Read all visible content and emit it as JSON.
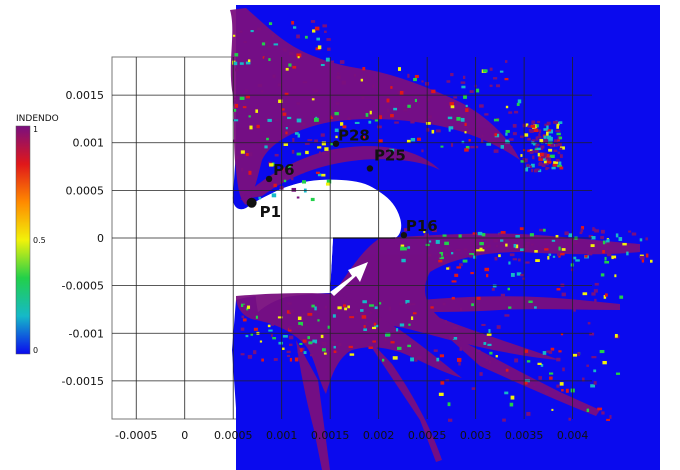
{
  "colorbar": {
    "title": "INDENDO",
    "ticks": [
      "1",
      "0.5",
      "0"
    ],
    "stops": [
      "#7a0f7f",
      "#e0171a",
      "#ff8a00",
      "#f2f20a",
      "#22d04a",
      "#15b9c8",
      "#0a0aee"
    ]
  },
  "axes": {
    "x_ticks": [
      "-0.0005",
      "0",
      "0.0005",
      "0.001",
      "0.0015",
      "0.002",
      "0.0025",
      "0.003",
      "0.0035",
      "0.004"
    ],
    "y_ticks": [
      "0.0015",
      "0.001",
      "0.0005",
      "0",
      "-0.0005",
      "-0.001",
      "-0.0015"
    ],
    "x_values": [
      -0.0005,
      0,
      0.0005,
      0.001,
      0.0015,
      0.002,
      0.0025,
      0.003,
      0.0035,
      0.004
    ],
    "y_values": [
      0.0015,
      0.001,
      0.0005,
      0,
      -0.0005,
      -0.001,
      -0.0015
    ],
    "xlim": [
      -0.00075,
      0.0042
    ],
    "ylim": [
      -0.0019,
      0.0019
    ]
  },
  "points": [
    {
      "label": "P1",
      "x": 0.00069,
      "y": 0.00037
    },
    {
      "label": "P6",
      "x": 0.00087,
      "y": 0.00062
    },
    {
      "label": "P28",
      "x": 0.00156,
      "y": 0.00099
    },
    {
      "label": "P25",
      "x": 0.00191,
      "y": 0.00073
    },
    {
      "label": "P16",
      "x": 0.00226,
      "y": 3e-05
    }
  ],
  "colors": {
    "field": "#0a0aee",
    "damage": "#7a0f7f",
    "arrow": "#ffffff",
    "grid": "#222222"
  }
}
